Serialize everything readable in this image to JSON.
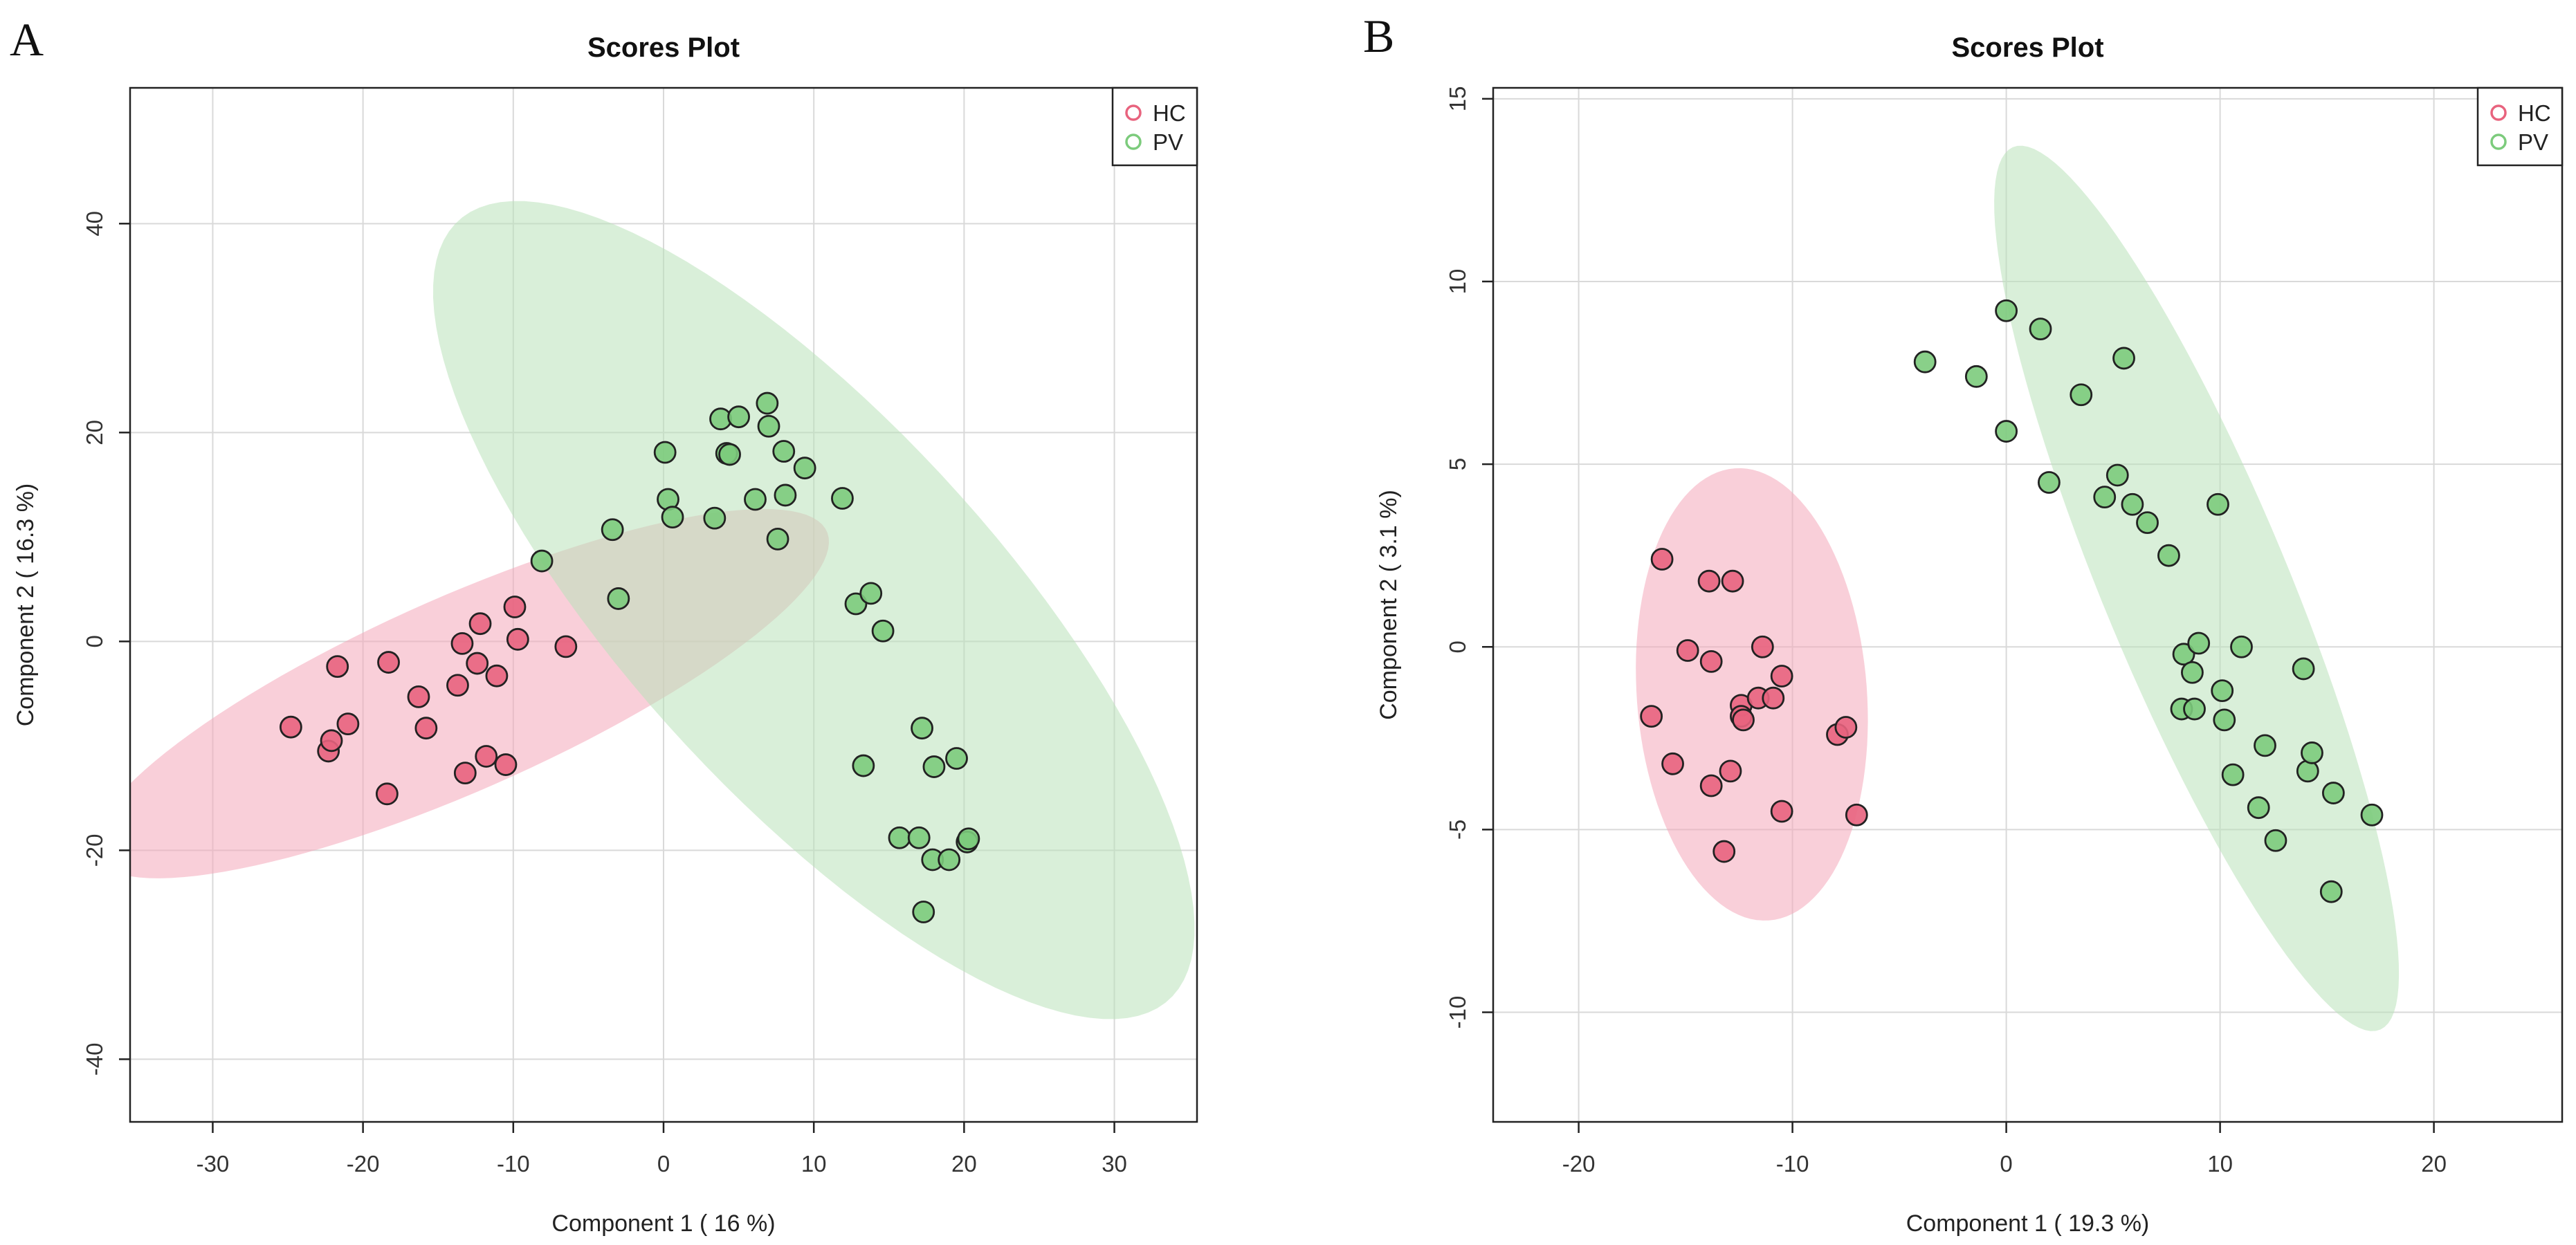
{
  "chart_data": [
    {
      "panel_label": "A",
      "type": "scatter",
      "title": "Scores Plot",
      "xlabel": "Component 1 ( 16 %)",
      "ylabel": "Component 2 ( 16.3 %)",
      "xlim": [
        -35.5,
        35.5
      ],
      "ylim": [
        -46,
        53
      ],
      "xticks": [
        -30,
        -20,
        -10,
        0,
        10,
        20,
        30
      ],
      "yticks": [
        -40,
        -20,
        0,
        20,
        40
      ],
      "xtick_labels": [
        "-30",
        "-20",
        "-10",
        "0",
        "10",
        "20",
        "30"
      ],
      "ytick_labels": [
        "-40",
        "-20",
        "0",
        "20",
        "40"
      ],
      "grid": true,
      "legend_position": "top-right",
      "legend": [
        "HC",
        "PV"
      ],
      "series": [
        {
          "name": "HC",
          "color": "#e8637e",
          "ellipse_color": "#f4a7b9",
          "ellipse": {
            "center": [
              -13.5,
              -5
            ],
            "semi_major": 29,
            "semi_minor": 8.5,
            "angle_deg": 34
          },
          "points": [
            [
              -24.8,
              -8.2
            ],
            [
              -22.3,
              -10.5
            ],
            [
              -22.1,
              -9.5
            ],
            [
              -21.7,
              -2.4
            ],
            [
              -21.0,
              -7.9
            ],
            [
              -18.4,
              -14.6
            ],
            [
              -18.3,
              -2.0
            ],
            [
              -16.3,
              -5.3
            ],
            [
              -15.8,
              -8.3
            ],
            [
              -13.7,
              -4.2
            ],
            [
              -13.4,
              -0.2
            ],
            [
              -13.2,
              -12.6
            ],
            [
              -12.4,
              -2.1
            ],
            [
              -12.2,
              1.7
            ],
            [
              -11.8,
              -11.0
            ],
            [
              -11.1,
              -3.3
            ],
            [
              -10.5,
              -11.8
            ],
            [
              -9.9,
              3.3
            ],
            [
              -9.7,
              0.2
            ],
            [
              -6.5,
              -0.5
            ]
          ]
        },
        {
          "name": "PV",
          "color": "#7ccb7c",
          "ellipse_color": "#b9e2b9",
          "ellipse": {
            "center": [
              10,
              3
            ],
            "semi_major": 44.5,
            "semi_minor": 14,
            "angle_deg": -60
          },
          "points": [
            [
              -8.1,
              7.7
            ],
            [
              -3.4,
              10.7
            ],
            [
              -3.0,
              4.1
            ],
            [
              0.1,
              18.1
            ],
            [
              0.3,
              13.6
            ],
            [
              0.6,
              11.9
            ],
            [
              3.4,
              11.8
            ],
            [
              3.8,
              21.3
            ],
            [
              4.2,
              18.0
            ],
            [
              4.4,
              17.9
            ],
            [
              5.0,
              21.5
            ],
            [
              6.1,
              13.6
            ],
            [
              6.9,
              22.8
            ],
            [
              7.0,
              20.6
            ],
            [
              7.6,
              9.8
            ],
            [
              8.0,
              18.2
            ],
            [
              8.1,
              14.0
            ],
            [
              9.4,
              16.6
            ],
            [
              11.9,
              13.7
            ],
            [
              12.8,
              3.6
            ],
            [
              13.3,
              -11.9
            ],
            [
              13.8,
              4.6
            ],
            [
              14.6,
              1.0
            ],
            [
              15.7,
              -18.8
            ],
            [
              17.0,
              -18.8
            ],
            [
              17.2,
              -8.3
            ],
            [
              17.3,
              -25.9
            ],
            [
              17.9,
              -20.9
            ],
            [
              18.0,
              -12.0
            ],
            [
              19.0,
              -20.9
            ],
            [
              19.5,
              -11.2
            ],
            [
              20.2,
              -19.2
            ],
            [
              20.3,
              -18.9
            ]
          ]
        }
      ]
    },
    {
      "panel_label": "B",
      "type": "scatter",
      "title": "Scores Plot",
      "xlabel": "Component 1 ( 19.3 %)",
      "ylabel": "Component 2 ( 3.1 %)",
      "xlim": [
        -24,
        26
      ],
      "ylim": [
        -13,
        15.3
      ],
      "xticks": [
        -20,
        -10,
        0,
        10,
        20
      ],
      "yticks": [
        -10,
        -5,
        0,
        5,
        10,
        15
      ],
      "xtick_labels": [
        "-20",
        "-10",
        "0",
        "10",
        "20"
      ],
      "ytick_labels": [
        "-10",
        "-5",
        "0",
        "5",
        "10",
        "15"
      ],
      "grid": true,
      "legend_position": "top-right",
      "legend": [
        "HC",
        "PV"
      ],
      "series": [
        {
          "name": "HC",
          "color": "#e8637e",
          "ellipse_color": "#f4a7b9",
          "ellipse": {
            "center": [
              -11.9,
              -1.3
            ],
            "semi_major": 5.3,
            "semi_minor": 6.3,
            "angle_deg": 20
          },
          "points": [
            [
              -16.6,
              -1.9
            ],
            [
              -16.1,
              2.4
            ],
            [
              -15.6,
              -3.2
            ],
            [
              -14.9,
              -0.1
            ],
            [
              -13.9,
              1.8
            ],
            [
              -13.8,
              -0.4
            ],
            [
              -13.8,
              -3.8
            ],
            [
              -13.2,
              -5.6
            ],
            [
              -12.9,
              -3.4
            ],
            [
              -12.8,
              1.8
            ],
            [
              -12.4,
              -1.6
            ],
            [
              -12.4,
              -1.9
            ],
            [
              -12.3,
              -2.0
            ],
            [
              -11.6,
              -1.4
            ],
            [
              -11.4,
              0.0
            ],
            [
              -10.9,
              -1.4
            ],
            [
              -10.5,
              -0.8
            ],
            [
              -10.5,
              -4.5
            ],
            [
              -7.9,
              -2.4
            ],
            [
              -7.5,
              -2.2
            ],
            [
              -7.0,
              -4.6
            ]
          ]
        },
        {
          "name": "PV",
          "color": "#7ccb7c",
          "ellipse_color": "#b9e2b9",
          "ellipse": {
            "center": [
              8.9,
              1.6
            ],
            "semi_major": 14.9,
            "semi_minor": 3.8,
            "angle_deg": -53
          },
          "points": [
            [
              -3.8,
              7.8
            ],
            [
              -1.4,
              7.4
            ],
            [
              0.0,
              9.2
            ],
            [
              0.0,
              5.9
            ],
            [
              1.6,
              8.7
            ],
            [
              2.0,
              4.5
            ],
            [
              3.5,
              6.9
            ],
            [
              4.6,
              4.1
            ],
            [
              5.2,
              4.7
            ],
            [
              5.5,
              7.9
            ],
            [
              5.9,
              3.9
            ],
            [
              6.6,
              3.4
            ],
            [
              7.6,
              2.5
            ],
            [
              8.2,
              -1.7
            ],
            [
              8.3,
              -0.2
            ],
            [
              8.7,
              -0.7
            ],
            [
              8.8,
              -1.7
            ],
            [
              9.0,
              0.1
            ],
            [
              9.9,
              3.9
            ],
            [
              10.1,
              -1.2
            ],
            [
              10.2,
              -2.0
            ],
            [
              10.6,
              -3.5
            ],
            [
              11.0,
              0.0
            ],
            [
              11.8,
              -4.4
            ],
            [
              12.1,
              -2.7
            ],
            [
              12.6,
              -5.3
            ],
            [
              13.9,
              -0.6
            ],
            [
              14.1,
              -3.4
            ],
            [
              14.3,
              -2.9
            ],
            [
              15.3,
              -4.0
            ],
            [
              15.2,
              -6.7
            ],
            [
              17.1,
              -4.6
            ]
          ]
        }
      ]
    }
  ]
}
